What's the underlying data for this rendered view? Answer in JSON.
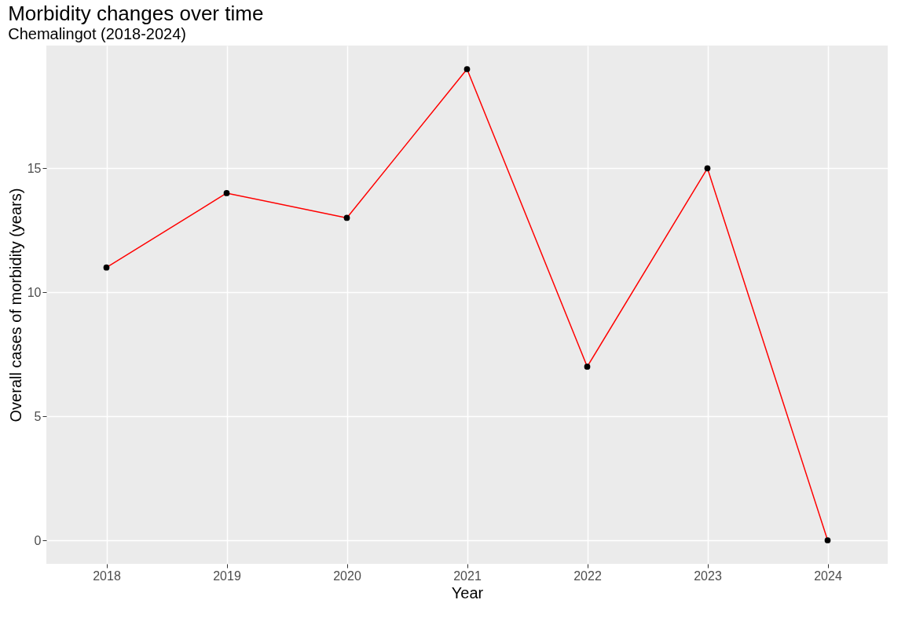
{
  "chart_data": {
    "type": "line",
    "title": "Morbidity changes over time",
    "subtitle": "Chemalingot  (2018-2024)",
    "xlabel": "Year",
    "ylabel": "Overall cases of morbidity (years)",
    "categories": [
      "2018",
      "2019",
      "2020",
      "2021",
      "2022",
      "2023",
      "2024"
    ],
    "series": [
      {
        "color": "#ff0000",
        "values": [
          11,
          14,
          13,
          19,
          7,
          15,
          0
        ]
      }
    ],
    "ylim": [
      -0.95,
      19.95
    ],
    "yticks": [
      0,
      5,
      10,
      15
    ],
    "grid": true,
    "marker": "circle",
    "line_style": "solid"
  }
}
